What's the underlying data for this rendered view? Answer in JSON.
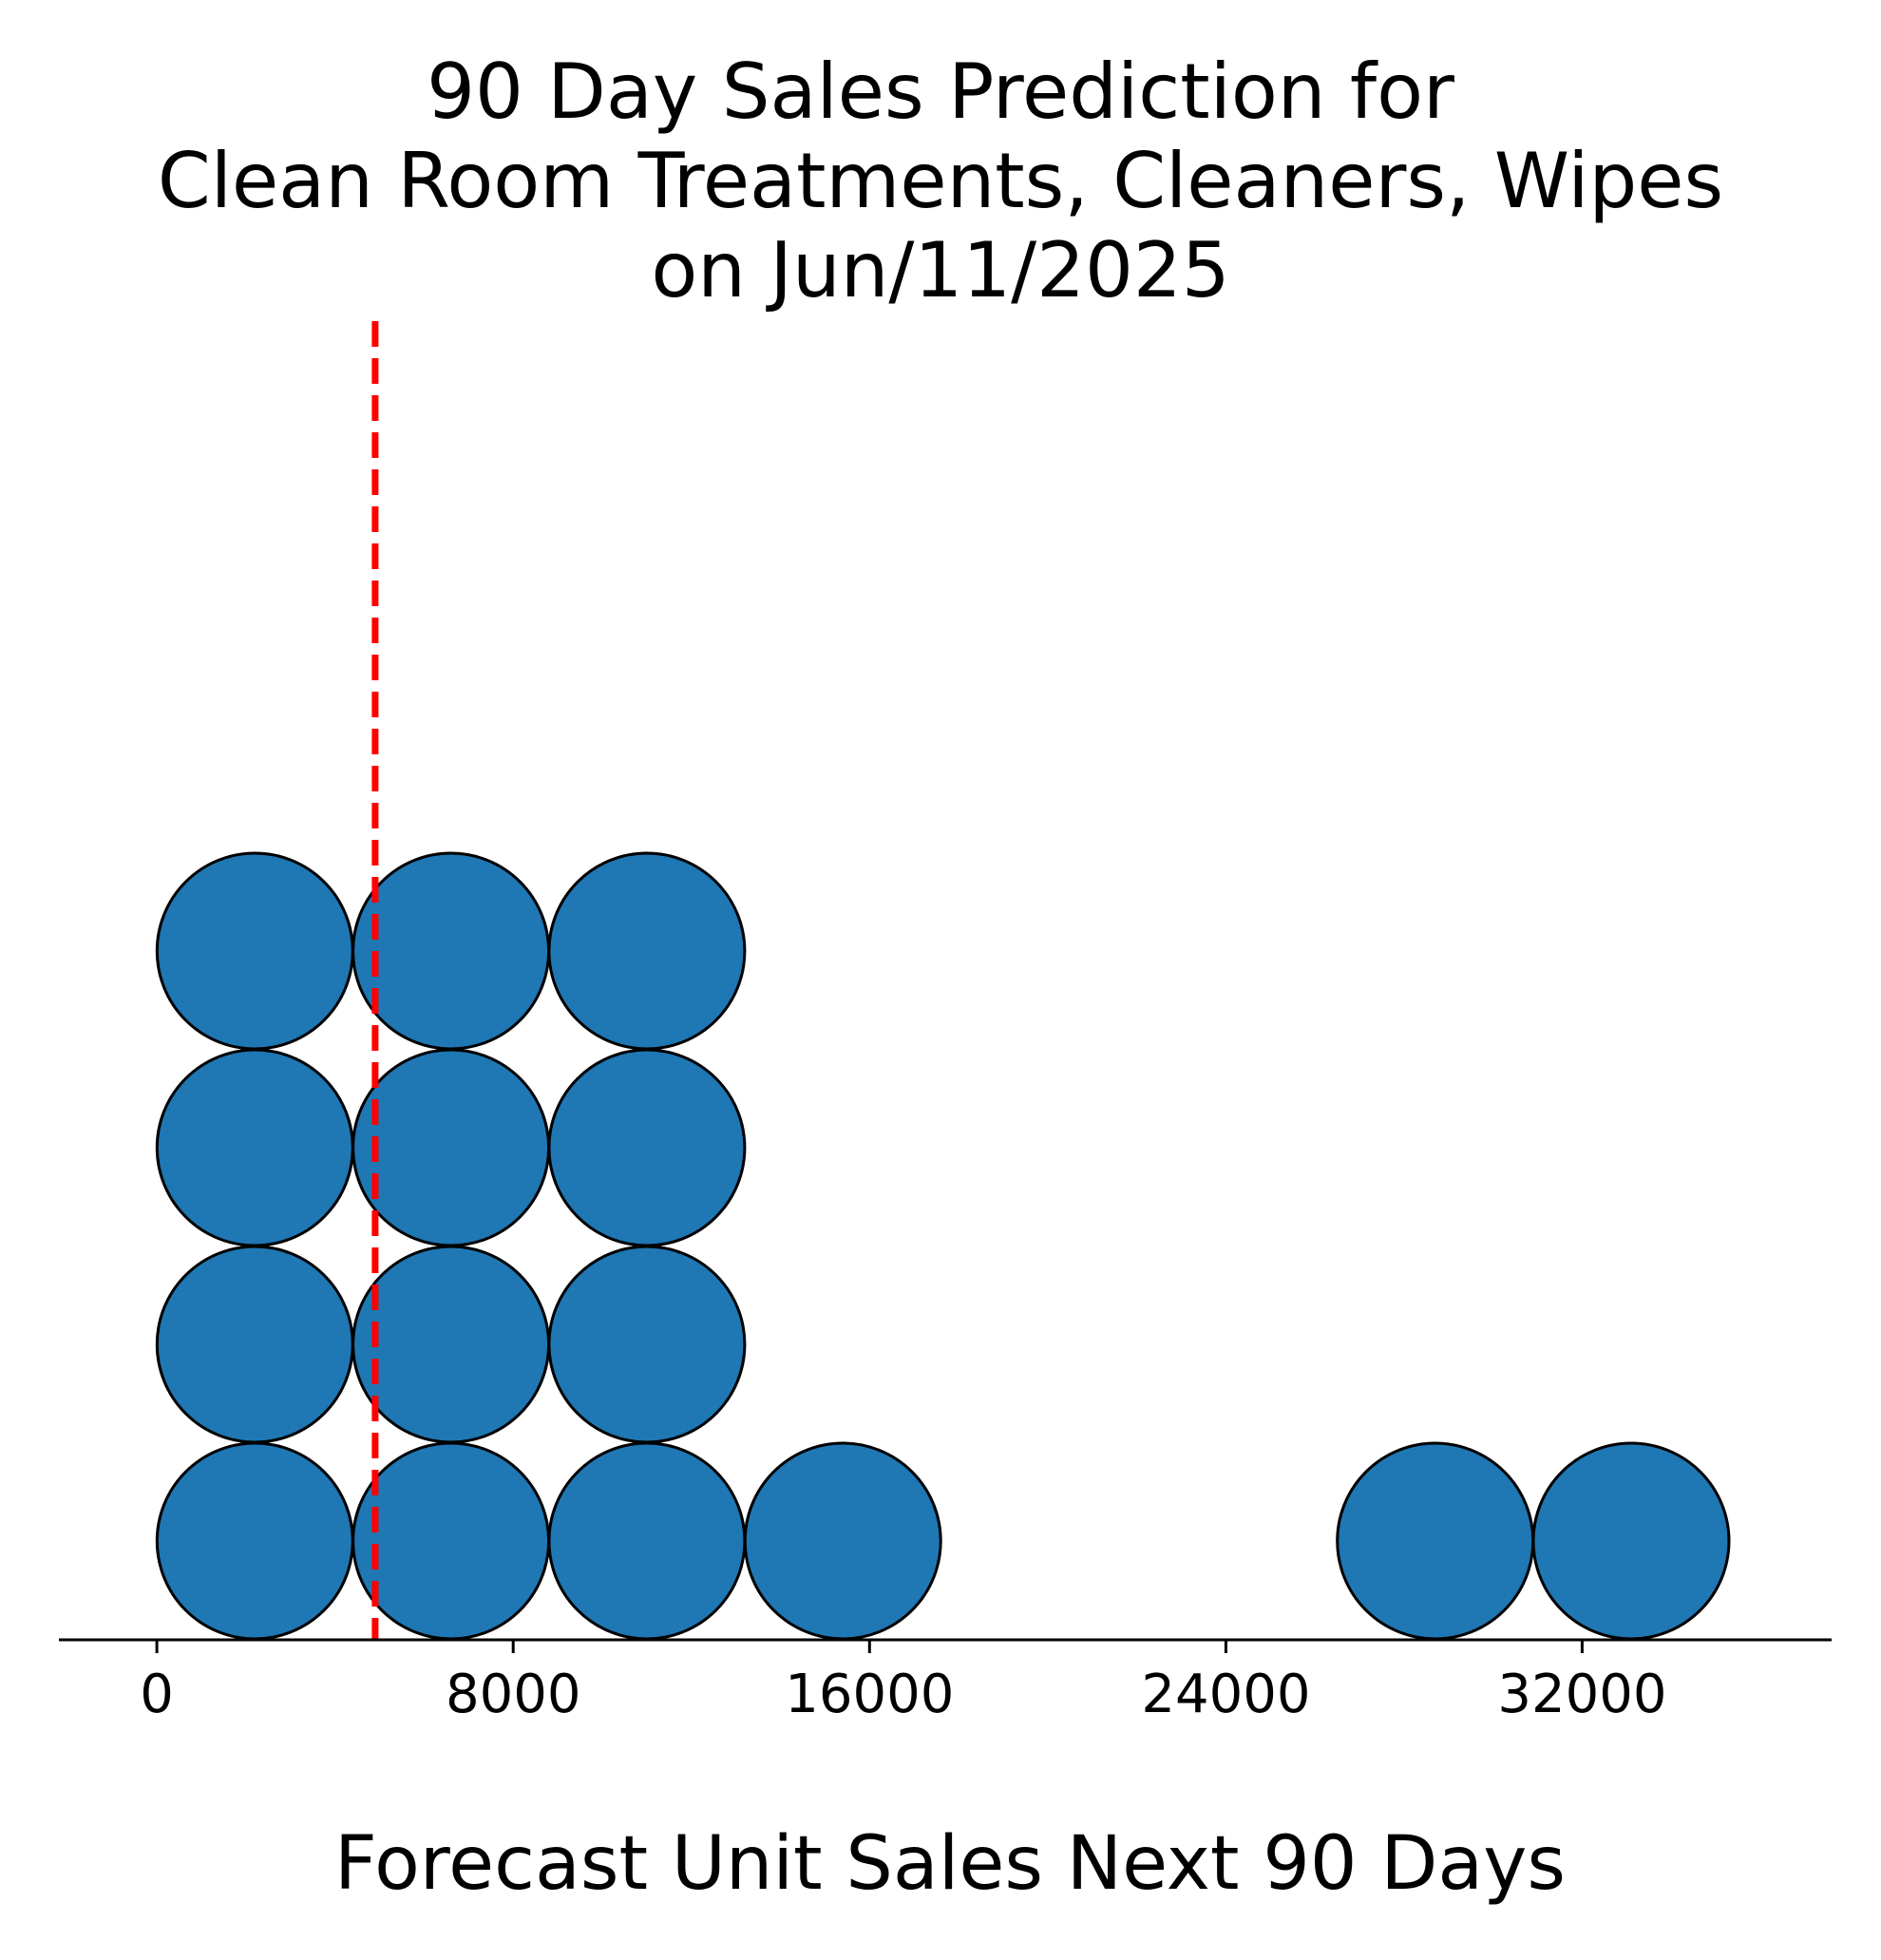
{
  "chart_data": {
    "type": "scatter",
    "subtype": "dot-plot",
    "title_lines": [
      "90 Day Sales Prediction for",
      "Clean Room Treatments, Cleaners, Wipes",
      "on Jun/11/2025"
    ],
    "xlabel": "Forecast Unit Sales Next 90 Days",
    "ylabel": "",
    "xlim": [
      -2200,
      37600
    ],
    "x_ticks": [
      0,
      8000,
      16000,
      24000,
      32000
    ],
    "x_tick_labels": [
      "0",
      "8000",
      "16000",
      "24000",
      "32000"
    ],
    "y_axis_visible": false,
    "grid": false,
    "legend": "none",
    "reference_line": {
      "x": 4900,
      "style": "dashed",
      "color": "#ff0000"
    },
    "dot_color": "#1f77b4",
    "dot_edge_color": "#000000",
    "stacks": [
      {
        "x": 2200,
        "count": 4
      },
      {
        "x": 6600,
        "count": 4
      },
      {
        "x": 11000,
        "count": 4
      },
      {
        "x": 15400,
        "count": 1
      },
      {
        "x": 28700,
        "count": 1
      },
      {
        "x": 33100,
        "count": 1
      }
    ]
  }
}
